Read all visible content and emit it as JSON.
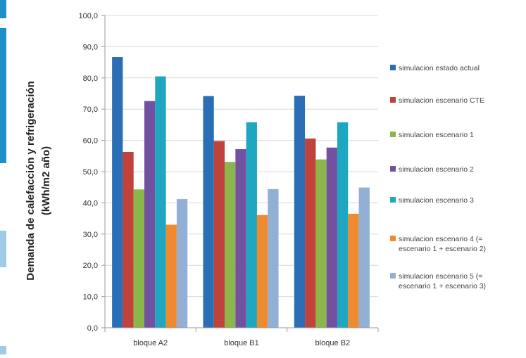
{
  "colors": {
    "edge_strip_dark": "#1e8fc9",
    "edge_strip_light": "#9fcbe6",
    "axis": "#9a9a9a",
    "gridline": "#d9d9d9"
  },
  "chart_data": {
    "type": "bar",
    "ylabel_line1": "Demanda de calefacción y refrigeración",
    "ylabel_line2": "(kWh/m2 año)",
    "ylim": [
      0,
      100
    ],
    "yticks": [
      "0,0",
      "10,0",
      "20,0",
      "30,0",
      "40,0",
      "50,0",
      "60,0",
      "70,0",
      "80,0",
      "90,0",
      "100,0"
    ],
    "grid": true,
    "legend_position": "right",
    "categories": [
      "bloque A2",
      "bloque B1",
      "bloque B2"
    ],
    "series": [
      {
        "name": "simulacion estado actual",
        "color": "#2a6fb5",
        "values": [
          86.7,
          74.2,
          74.3
        ]
      },
      {
        "name": "simulacion escenario CTE",
        "color": "#c0423b",
        "values": [
          56.3,
          59.8,
          60.6
        ]
      },
      {
        "name": "simulacion escenario 1",
        "color": "#8ab64b",
        "values": [
          44.3,
          53.1,
          53.9
        ]
      },
      {
        "name": "simulacion escenario 2",
        "color": "#7252a0",
        "values": [
          72.6,
          57.2,
          57.7
        ]
      },
      {
        "name": "simulacion escenario 3",
        "color": "#1fa6c0",
        "values": [
          80.5,
          65.8,
          65.8
        ]
      },
      {
        "name": "simulacion escenario 4 (= escenario 1 + escenario 2)",
        "name_lines": [
          "simulacion escenario 4 (=",
          "escenario 1 + escenario 2)"
        ],
        "color": "#f08a2e",
        "values": [
          33.0,
          36.1,
          36.5
        ]
      },
      {
        "name": "simulacion escenario 5 (= escenario 1 + escenario 3)",
        "name_lines": [
          "simulacion escenario 5 (=",
          "escenario 1 + escenario 3)"
        ],
        "color": "#92afd6",
        "values": [
          41.2,
          44.4,
          44.9
        ]
      }
    ]
  }
}
